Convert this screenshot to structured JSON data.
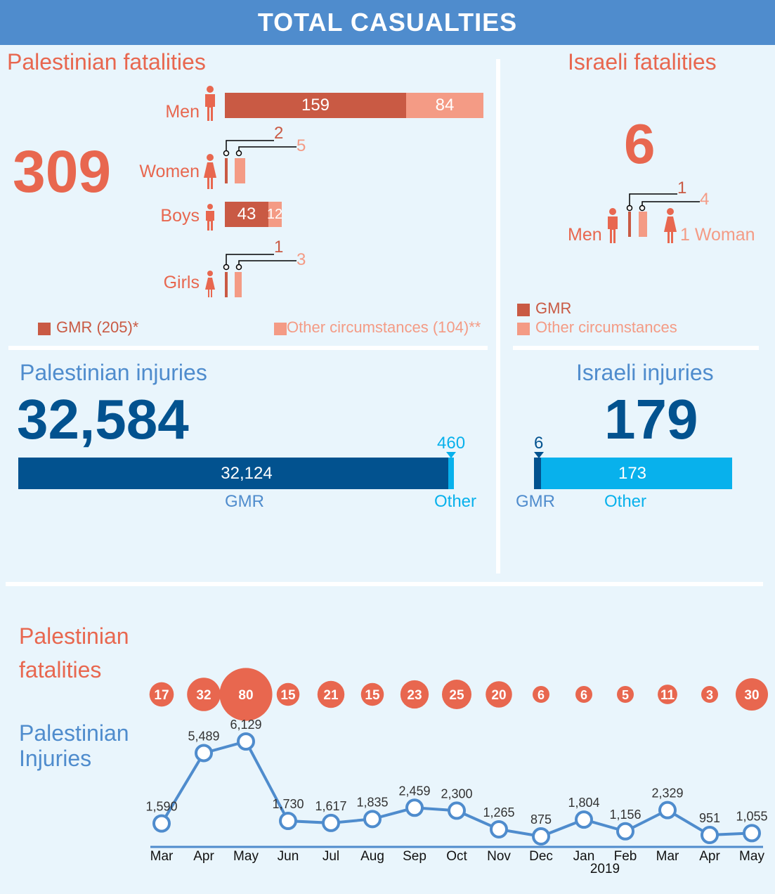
{
  "header": {
    "title": "TOTAL CASUALTIES"
  },
  "pal_fatalities": {
    "title": "Palestinian fatalities",
    "total": "309",
    "rows": [
      {
        "label": "Men",
        "gmr": 159,
        "other": 84,
        "icon": "man-icon"
      },
      {
        "label": "Women",
        "gmr": 2,
        "other": 5,
        "icon": "woman-icon"
      },
      {
        "label": "Boys",
        "gmr": 43,
        "other": 12,
        "icon": "boy-icon"
      },
      {
        "label": "Girls",
        "gmr": 1,
        "other": 3,
        "icon": "girl-icon"
      }
    ],
    "legend_gmr": "GMR (205)*",
    "legend_other": "Other circumstances (104)**"
  },
  "isr_fatalities": {
    "title": "Israeli fatalities",
    "total": "6",
    "men_label": "Men",
    "men_gmr": 1,
    "men_other": 4,
    "woman_label": "1 Woman",
    "legend_gmr": "GMR",
    "legend_other": "Other circumstances"
  },
  "pal_injuries": {
    "title": "Palestinian injuries",
    "total": "32,584",
    "gmr": "32,124",
    "other": "460",
    "gmr_value": 32124,
    "other_value": 460,
    "gmr_label": "GMR",
    "other_label": "Other"
  },
  "isr_injuries": {
    "title": "Israeli injuries",
    "total": "179",
    "gmr": "6",
    "other": "173",
    "gmr_value": 6,
    "other_value": 173,
    "gmr_label": "GMR",
    "other_label": "Other"
  },
  "timeline": {
    "fatalities_title_1": "Palestinian",
    "fatalities_title_2": "fatalities",
    "injuries_title_1": "Palestinian",
    "injuries_title_2": "Injuries",
    "year_label": "2019"
  },
  "colors": {
    "gmr_red": "#c95a44",
    "other_salmon": "#f49b85",
    "accent_red": "#e8674f",
    "navy": "#02528f",
    "cyan": "#08b1ec",
    "line_blue": "#4f8ccd",
    "header_blue": "#4f8ccd"
  },
  "chart_data": [
    {
      "type": "bar",
      "title": "Palestinian fatalities",
      "categories": [
        "Men",
        "Women",
        "Boys",
        "Girls"
      ],
      "series": [
        {
          "name": "GMR",
          "values": [
            159,
            2,
            43,
            1
          ]
        },
        {
          "name": "Other circumstances",
          "values": [
            84,
            5,
            12,
            3
          ]
        }
      ],
      "stacked": true
    },
    {
      "type": "bar",
      "title": "Palestinian injuries",
      "categories": [
        "GMR",
        "Other"
      ],
      "values": [
        32124,
        460
      ]
    },
    {
      "type": "bar",
      "title": "Israeli injuries",
      "categories": [
        "GMR",
        "Other"
      ],
      "values": [
        6,
        173
      ]
    },
    {
      "type": "scatter",
      "title": "Palestinian fatalities",
      "x": [
        "Mar",
        "Apr",
        "May",
        "Jun",
        "Jul",
        "Aug",
        "Sep",
        "Oct",
        "Nov",
        "Dec",
        "Jan",
        "Feb",
        "Mar",
        "Apr",
        "May"
      ],
      "values": [
        17,
        32,
        80,
        15,
        21,
        15,
        23,
        25,
        20,
        6,
        6,
        5,
        11,
        3,
        30
      ]
    },
    {
      "type": "line",
      "title": "Palestinian Injuries",
      "x": [
        "Mar",
        "Apr",
        "May",
        "Jun",
        "Jul",
        "Aug",
        "Sep",
        "Oct",
        "Nov",
        "Dec",
        "Jan",
        "Feb",
        "Mar",
        "Apr",
        "May"
      ],
      "values": [
        1590,
        5489,
        6129,
        1730,
        1617,
        1835,
        2459,
        2300,
        1265,
        875,
        1804,
        1156,
        2329,
        951,
        1055
      ],
      "labels": [
        "1,590",
        "5,489",
        "6,129",
        "1,730",
        "1,617",
        "1,835",
        "2,459",
        "2,300",
        "1,265",
        "875",
        "1,804",
        "1,156",
        "2,329",
        "951",
        "1,055"
      ]
    }
  ]
}
